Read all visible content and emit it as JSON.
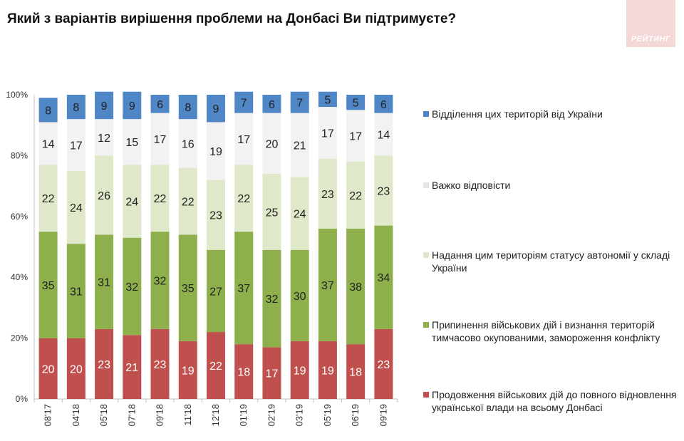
{
  "title": "Який з варіантів вирішення проблеми на Донбасі Ви підтримуєте?",
  "logo_text": "РЕЙТИНГ",
  "chart_data": {
    "type": "bar",
    "stacked": true,
    "categories": [
      "08'17",
      "04'18",
      "05'18",
      "07'18",
      "09'18",
      "11'18",
      "12'18",
      "01'19",
      "02'19",
      "03'19",
      "05'19",
      "06'19",
      "09'19"
    ],
    "ylim": [
      0,
      100
    ],
    "yticks": [
      "0%",
      "20%",
      "40%",
      "60%",
      "80%",
      "100%"
    ],
    "legend_position": "right",
    "series": [
      {
        "name": "Продовження військових дій до повного відновлення української влади на всьому Донбасі",
        "color": "#c0504d",
        "label_color": "#ffffff",
        "values": [
          20,
          20,
          23,
          21,
          23,
          19,
          22,
          18,
          17,
          19,
          19,
          18,
          23
        ]
      },
      {
        "name": "Припинення військових дій і визнання територій тимчасово окупованими, замороження конфлікту",
        "color": "#8db04d",
        "label_color": "#222222",
        "values": [
          35,
          31,
          31,
          32,
          32,
          35,
          27,
          37,
          32,
          30,
          37,
          38,
          34
        ]
      },
      {
        "name": "Надання цим територіям статусу автономії у складі України",
        "color": "#dfe8c8",
        "label_color": "#222222",
        "values": [
          22,
          24,
          26,
          24,
          22,
          22,
          23,
          22,
          25,
          24,
          23,
          22,
          23
        ]
      },
      {
        "name": "Важко відповісти",
        "color": "#f2f2f2",
        "label_color": "#222222",
        "values": [
          14,
          17,
          12,
          15,
          17,
          16,
          19,
          17,
          20,
          21,
          17,
          17,
          14
        ]
      },
      {
        "name": "Відділення цих територій від України",
        "color": "#4f86c6",
        "label_color": "#222222",
        "values": [
          8,
          8,
          9,
          9,
          6,
          8,
          9,
          7,
          6,
          7,
          5,
          5,
          6
        ]
      }
    ]
  }
}
